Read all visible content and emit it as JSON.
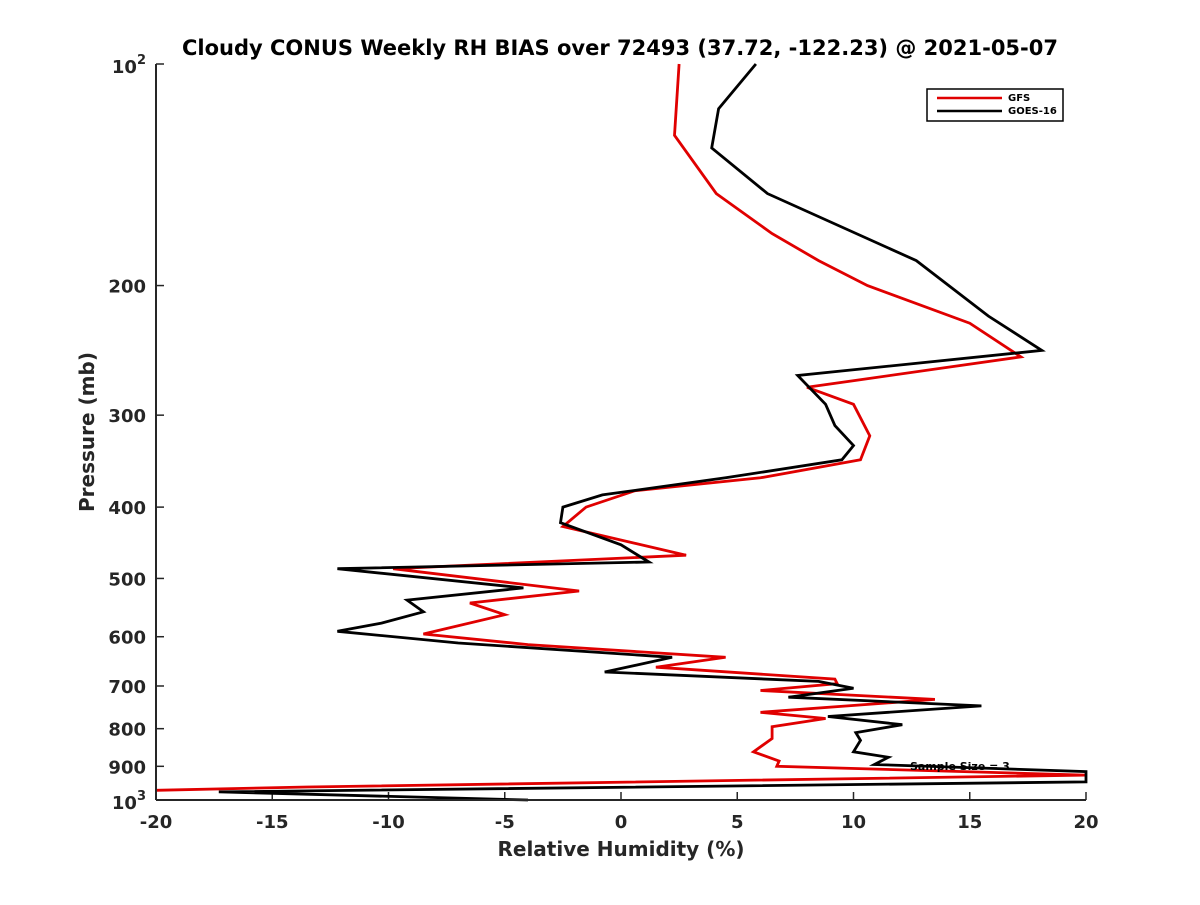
{
  "chart_data": {
    "type": "line",
    "title": "Cloudy CONUS Weekly RH BIAS over 72493 (37.72, -122.23) @ 2021-05-07",
    "xlabel": "Relative Humidity (%)",
    "ylabel": "Pressure (mb)",
    "xlim": [
      -20,
      20
    ],
    "ylim": [
      100,
      1000
    ],
    "y_scale": "log",
    "y_reversed": true,
    "x_ticks": [
      -20,
      -15,
      -10,
      -5,
      0,
      5,
      10,
      15,
      20
    ],
    "x_tick_labels": [
      "-20",
      "-15",
      "-10",
      "-5",
      "0",
      "5",
      "10",
      "15",
      "20"
    ],
    "y_ticks": [
      200,
      300,
      400,
      500,
      600,
      700,
      800,
      900
    ],
    "y_tick_labels": [
      "200",
      "300",
      "400",
      "500",
      "600",
      "700",
      "800",
      "900"
    ],
    "y_end_labels": [
      {
        "value": 100,
        "base": "10",
        "exp": "2"
      },
      {
        "value": 1000,
        "base": "10",
        "exp": "3"
      }
    ],
    "legend_position": "top-right",
    "annotation": "Sample Size = 3",
    "series": [
      {
        "name": "GFS",
        "color": "#e00000",
        "points": [
          [
            2.5,
            100
          ],
          [
            2.3,
            125
          ],
          [
            4.1,
            150
          ],
          [
            6.5,
            170
          ],
          [
            8.5,
            185
          ],
          [
            10.6,
            200
          ],
          [
            15,
            225
          ],
          [
            17.2,
            250
          ],
          [
            8,
            275
          ],
          [
            10,
            290
          ],
          [
            10.7,
            320
          ],
          [
            10.3,
            345
          ],
          [
            6,
            365
          ],
          [
            0.6,
            380
          ],
          [
            -1.5,
            400
          ],
          [
            -2.5,
            425
          ],
          [
            2.8,
            465
          ],
          [
            -9.8,
            485
          ],
          [
            -1.8,
            520
          ],
          [
            -6.5,
            540
          ],
          [
            -5,
            560
          ],
          [
            -8.5,
            595
          ],
          [
            -4,
            615
          ],
          [
            4.5,
            640
          ],
          [
            1.5,
            660
          ],
          [
            9.2,
            685
          ],
          [
            9.3,
            695
          ],
          [
            6,
            710
          ],
          [
            13.5,
            730
          ],
          [
            6,
            760
          ],
          [
            8.8,
            775
          ],
          [
            6.5,
            795
          ],
          [
            6.5,
            825
          ],
          [
            5.7,
            860
          ],
          [
            6.8,
            885
          ],
          [
            6.7,
            900
          ],
          [
            20,
            925
          ],
          [
            -13.5,
            960
          ],
          [
            -20,
            970
          ]
        ]
      },
      {
        "name": "GOES-16",
        "color": "#000000",
        "points": [
          [
            5.8,
            100
          ],
          [
            4.2,
            115
          ],
          [
            3.9,
            130
          ],
          [
            6.3,
            150
          ],
          [
            12.7,
            185
          ],
          [
            15.8,
            220
          ],
          [
            18.1,
            245
          ],
          [
            7.6,
            265
          ],
          [
            8.8,
            290
          ],
          [
            9.2,
            310
          ],
          [
            10,
            330
          ],
          [
            9.5,
            345
          ],
          [
            4.5,
            365
          ],
          [
            -0.8,
            385
          ],
          [
            -2.5,
            400
          ],
          [
            -2.6,
            420
          ],
          [
            0,
            450
          ],
          [
            1.2,
            475
          ],
          [
            -12.2,
            485
          ],
          [
            -4.2,
            515
          ],
          [
            -9.2,
            535
          ],
          [
            -8.5,
            555
          ],
          [
            -10.3,
            575
          ],
          [
            -12.2,
            590
          ],
          [
            -7,
            612
          ],
          [
            2.2,
            640
          ],
          [
            -0.7,
            670
          ],
          [
            8.5,
            690
          ],
          [
            10,
            705
          ],
          [
            7.2,
            725
          ],
          [
            15.5,
            745
          ],
          [
            8.9,
            770
          ],
          [
            12.1,
            790
          ],
          [
            10.1,
            810
          ],
          [
            10.3,
            830
          ],
          [
            10,
            860
          ],
          [
            11.5,
            875
          ],
          [
            10.9,
            895
          ],
          [
            20,
            915
          ],
          [
            20,
            945
          ],
          [
            -17.3,
            975
          ],
          [
            -4,
            1000
          ]
        ]
      }
    ]
  }
}
